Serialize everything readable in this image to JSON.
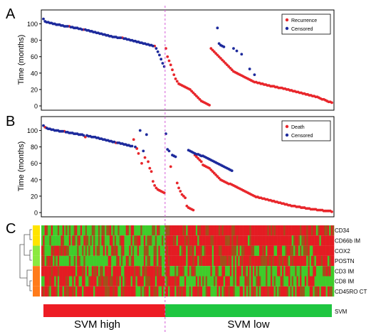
{
  "panel_letters": [
    "A",
    "B",
    "C"
  ],
  "colors": {
    "recurrence": "#e8262b",
    "death": "#e8262b",
    "censored": "#1d2a9c",
    "heat_high": "#e41c23",
    "heat_low": "#3fcc2b",
    "svm_high": "#ed1c24",
    "svm_low": "#1fc641",
    "divider": "#d45ad8"
  },
  "chart_data": [
    {
      "type": "scatter",
      "panel": "A",
      "ylabel": "Time (months)",
      "ylim": [
        0,
        110
      ],
      "yticks": [
        0,
        20,
        40,
        60,
        80,
        100
      ],
      "legend": {
        "placement": "top-right",
        "entries": [
          "Recurrence",
          "Censored"
        ]
      },
      "n_samples": 180,
      "split_index": 76,
      "series": [
        {
          "name": "Recurrence",
          "x": [
            17,
            26,
            50,
            70,
            77,
            78,
            79,
            80,
            81,
            82,
            83,
            84,
            85,
            86,
            87,
            88,
            89,
            90,
            91,
            92,
            93,
            94,
            95,
            96,
            97,
            98,
            99,
            100,
            101,
            102,
            103,
            104,
            105,
            106,
            107,
            108,
            109,
            110,
            111,
            112,
            113,
            114,
            115,
            116,
            117,
            118,
            119,
            120,
            121,
            122,
            123,
            124,
            125,
            126,
            127,
            128,
            129,
            130,
            131,
            132,
            133,
            134,
            135,
            136,
            137,
            138,
            139,
            140,
            141,
            142,
            143,
            144,
            145,
            146,
            147,
            148,
            149,
            150,
            151,
            152,
            153,
            154,
            155,
            156,
            157,
            158,
            159,
            160,
            161,
            162,
            163,
            164,
            165,
            166,
            167,
            168,
            169,
            170,
            171,
            172,
            173,
            174,
            175,
            176,
            177,
            178,
            179,
            180
          ],
          "y": [
            97,
            93,
            83,
            73,
            70,
            60,
            55,
            50,
            44,
            38,
            33,
            30,
            27,
            26,
            25,
            24,
            23,
            22,
            21,
            20,
            18,
            16,
            14,
            12,
            10,
            8,
            6,
            5,
            4,
            3,
            2,
            1,
            70,
            68,
            66,
            64,
            62,
            60,
            58,
            56,
            54,
            52,
            50,
            48,
            46,
            44,
            42,
            41,
            40,
            39,
            38,
            37,
            36,
            35,
            34,
            33,
            32,
            31,
            30,
            29,
            29,
            28,
            28,
            27,
            27,
            26,
            26,
            25,
            25,
            24,
            24,
            24,
            23,
            23,
            22,
            22,
            22,
            21,
            21,
            20,
            20,
            19,
            19,
            18,
            18,
            17,
            17,
            16,
            16,
            15,
            15,
            14,
            14,
            13,
            13,
            12,
            12,
            11,
            11,
            10,
            9,
            8,
            8,
            7,
            6,
            5,
            5,
            4
          ]
        },
        {
          "name": "Censored",
          "x": [
            1,
            2,
            3,
            4,
            5,
            6,
            7,
            8,
            9,
            10,
            11,
            12,
            13,
            14,
            15,
            16,
            18,
            19,
            20,
            21,
            22,
            23,
            24,
            25,
            27,
            28,
            29,
            30,
            31,
            32,
            33,
            34,
            35,
            36,
            37,
            38,
            39,
            40,
            41,
            42,
            43,
            44,
            45,
            46,
            47,
            48,
            49,
            51,
            52,
            53,
            54,
            55,
            56,
            57,
            58,
            59,
            60,
            61,
            62,
            63,
            64,
            65,
            66,
            67,
            68,
            69,
            71,
            72,
            73,
            74,
            75,
            76,
            109,
            110,
            111,
            112,
            113,
            119,
            121,
            124,
            129,
            132
          ],
          "y": [
            106,
            103,
            102,
            102,
            101,
            101,
            100,
            100,
            99,
            99,
            99,
            98,
            98,
            97,
            97,
            97,
            96,
            96,
            95,
            95,
            95,
            94,
            94,
            93,
            93,
            92,
            92,
            91,
            91,
            90,
            90,
            89,
            89,
            88,
            88,
            87,
            87,
            86,
            86,
            85,
            85,
            84,
            84,
            84,
            83,
            83,
            83,
            82,
            82,
            81,
            81,
            80,
            80,
            79,
            79,
            78,
            78,
            77,
            77,
            76,
            76,
            75,
            75,
            74,
            74,
            73,
            70,
            66,
            62,
            57,
            52,
            48,
            95,
            76,
            74,
            73,
            72,
            70,
            67,
            63,
            45,
            38
          ]
        }
      ]
    },
    {
      "type": "scatter",
      "panel": "B",
      "ylabel": "Time (months)",
      "ylim": [
        0,
        110
      ],
      "yticks": [
        0,
        20,
        40,
        60,
        80,
        100
      ],
      "legend": {
        "placement": "top-right",
        "entries": [
          "Death",
          "Censored"
        ]
      },
      "n_samples": 180,
      "split_index": 76,
      "series": [
        {
          "name": "Death",
          "x": [
            2,
            14,
            27,
            46,
            57,
            59,
            60,
            62,
            64,
            66,
            67,
            68,
            69,
            70,
            71,
            72,
            73,
            74,
            75,
            76,
            80,
            84,
            85,
            86,
            87,
            88,
            89,
            90,
            91,
            92,
            93,
            94,
            95,
            96,
            97,
            98,
            99,
            100,
            101,
            102,
            103,
            104,
            105,
            106,
            107,
            108,
            109,
            110,
            111,
            112,
            113,
            114,
            115,
            116,
            117,
            118,
            119,
            120,
            121,
            122,
            123,
            124,
            125,
            126,
            127,
            128,
            129,
            130,
            131,
            132,
            133,
            134,
            135,
            136,
            137,
            138,
            139,
            140,
            141,
            142,
            143,
            144,
            145,
            146,
            147,
            148,
            149,
            150,
            151,
            152,
            153,
            154,
            155,
            156,
            157,
            158,
            159,
            160,
            161,
            162,
            163,
            164,
            165,
            166,
            167,
            168,
            169,
            170,
            171,
            172,
            173,
            174,
            175,
            176,
            177,
            178,
            179,
            180
          ],
          "y": [
            104,
            99,
            92,
            85,
            89,
            78,
            72,
            60,
            67,
            62,
            54,
            50,
            38,
            33,
            30,
            28,
            27,
            26,
            25,
            24,
            56,
            36,
            30,
            26,
            22,
            20,
            18,
            8,
            6,
            5,
            4,
            3,
            70,
            68,
            66,
            64,
            62,
            58,
            57,
            56,
            55,
            54,
            52,
            50,
            48,
            46,
            44,
            42,
            40,
            39,
            38,
            37,
            36,
            35,
            35,
            34,
            33,
            32,
            31,
            30,
            29,
            28,
            27,
            26,
            25,
            24,
            23,
            22,
            21,
            20,
            19,
            19,
            18,
            18,
            17,
            17,
            16,
            16,
            15,
            15,
            14,
            14,
            13,
            13,
            12,
            12,
            11,
            11,
            10,
            10,
            9,
            9,
            8,
            8,
            8,
            7,
            7,
            7,
            6,
            6,
            6,
            5,
            5,
            5,
            4,
            4,
            4,
            4,
            3,
            3,
            3,
            3,
            2,
            2,
            2,
            2,
            2,
            1
          ]
        },
        {
          "name": "Censored",
          "x": [
            1,
            3,
            4,
            5,
            6,
            7,
            8,
            9,
            10,
            11,
            12,
            13,
            15,
            16,
            17,
            18,
            19,
            20,
            21,
            22,
            23,
            24,
            25,
            26,
            28,
            29,
            30,
            31,
            32,
            33,
            34,
            35,
            36,
            37,
            38,
            39,
            40,
            41,
            42,
            43,
            44,
            45,
            47,
            48,
            49,
            50,
            51,
            52,
            53,
            54,
            55,
            56,
            58,
            61,
            63,
            65,
            77,
            78,
            79,
            81,
            82,
            83,
            91,
            92,
            93,
            94,
            95,
            96,
            97,
            98,
            99,
            100,
            101,
            102,
            103,
            104,
            105,
            106,
            107,
            108,
            109,
            110,
            111,
            112,
            113,
            114,
            115,
            116,
            117,
            118
          ],
          "y": [
            106,
            103,
            102,
            102,
            101,
            101,
            100,
            100,
            100,
            99,
            99,
            99,
            98,
            98,
            97,
            97,
            97,
            96,
            96,
            96,
            95,
            95,
            95,
            94,
            94,
            93,
            93,
            92,
            92,
            92,
            91,
            91,
            90,
            90,
            89,
            89,
            88,
            88,
            87,
            87,
            86,
            86,
            85,
            85,
            84,
            84,
            83,
            83,
            82,
            82,
            81,
            81,
            80,
            100,
            75,
            95,
            96,
            77,
            75,
            70,
            69,
            68,
            76,
            75,
            74,
            73,
            72,
            71,
            71,
            70,
            69,
            69,
            68,
            67,
            66,
            65,
            64,
            63,
            62,
            61,
            60,
            59,
            58,
            57,
            56,
            55,
            54,
            53,
            52,
            51
          ]
        }
      ]
    },
    {
      "type": "heatmap",
      "panel": "C",
      "rows": [
        "CD34",
        "CD66b IM",
        "COX2",
        "POSTN",
        "CD3 IM",
        "CD8 IM",
        "CD45RO CT"
      ],
      "row_cluster_colors": [
        "#ffe400",
        "#ffe400",
        "#8be93f",
        "#8be93f",
        "#ff7b1a",
        "#ff7b1a",
        "#ff7b1a"
      ],
      "n_columns": 180,
      "split_index": 76,
      "high_fraction_left": [
        0.15,
        0.18,
        0.22,
        0.12,
        0.62,
        0.58,
        0.55
      ],
      "high_fraction_right": [
        0.72,
        0.72,
        0.55,
        0.68,
        0.25,
        0.28,
        0.38
      ]
    },
    {
      "type": "bar",
      "panel": "SVM",
      "row_label": "SVM",
      "categories": [
        "SVM high",
        "SVM low"
      ],
      "values": [
        76,
        104
      ]
    }
  ]
}
